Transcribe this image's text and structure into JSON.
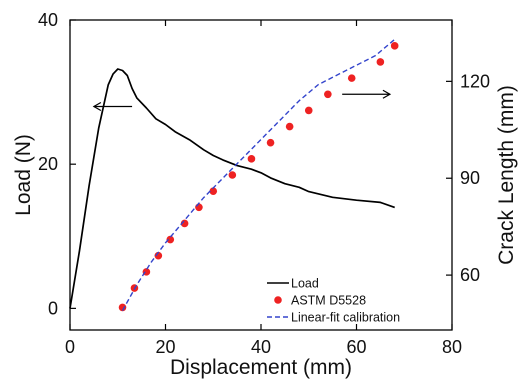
{
  "chart_data": {
    "type": "line",
    "xlabel": "Displacement (mm)",
    "ylabel_left": "Load (N)",
    "ylabel_right": "Crack Length (mm)",
    "xlim": [
      0,
      80
    ],
    "ylim_left": [
      -3,
      40
    ],
    "ylim_right": [
      43,
      139
    ],
    "x_ticks": [
      0,
      20,
      40,
      60,
      80
    ],
    "y_ticks_left": [
      0,
      20,
      40
    ],
    "y_ticks_right": [
      60,
      90,
      120
    ],
    "grid": false,
    "legend_position": "lower-right",
    "series": [
      {
        "name": "Load",
        "axis": "left",
        "style": "solid-line",
        "color": "#000000",
        "x": [
          0,
          2,
          4,
          6,
          8,
          9,
          10,
          11,
          12,
          13,
          14,
          16,
          18,
          20,
          22,
          25,
          28,
          30,
          32,
          35,
          38,
          40,
          42,
          45,
          48,
          50,
          55,
          60,
          65,
          68
        ],
        "y": [
          0,
          8,
          17,
          25,
          31,
          32.5,
          33.2,
          33,
          32.3,
          30.5,
          29.2,
          27.8,
          26.3,
          25.5,
          24.5,
          23.4,
          22,
          21.2,
          20.6,
          19.8,
          19.3,
          18.8,
          18.1,
          17.3,
          16.8,
          16.2,
          15.4,
          15,
          14.7,
          14
        ]
      },
      {
        "name": "ASTM D5528",
        "axis": "right",
        "style": "markers",
        "color": "#ee2222",
        "x": [
          11,
          13.5,
          16,
          18.5,
          21,
          24,
          27,
          30,
          34,
          38,
          42,
          46,
          50,
          54,
          59,
          65,
          68
        ],
        "y": [
          50,
          56,
          61,
          66,
          71,
          76,
          81,
          86,
          91,
          96,
          101,
          106,
          111,
          116,
          121,
          126,
          131
        ]
      },
      {
        "name": "Linear-fit calibration",
        "axis": "right",
        "style": "dashed-line",
        "color": "#3344cc",
        "x": [
          11,
          14,
          17,
          20,
          24,
          28,
          32,
          36,
          40,
          44,
          48,
          52,
          56,
          60,
          64,
          68
        ],
        "y": [
          49,
          57,
          64,
          70,
          77,
          84,
          90,
          96,
          102,
          108,
          114,
          119,
          122,
          125,
          128,
          133
        ]
      }
    ],
    "annotations": [
      {
        "type": "arrow",
        "direction": "left",
        "refers_to_axis": "left",
        "x_start": 13,
        "x_end": 5,
        "y_left": 28
      },
      {
        "type": "arrow",
        "direction": "right",
        "refers_to_axis": "right",
        "x_start": 57,
        "x_end": 67,
        "y_right": 116
      }
    ]
  }
}
